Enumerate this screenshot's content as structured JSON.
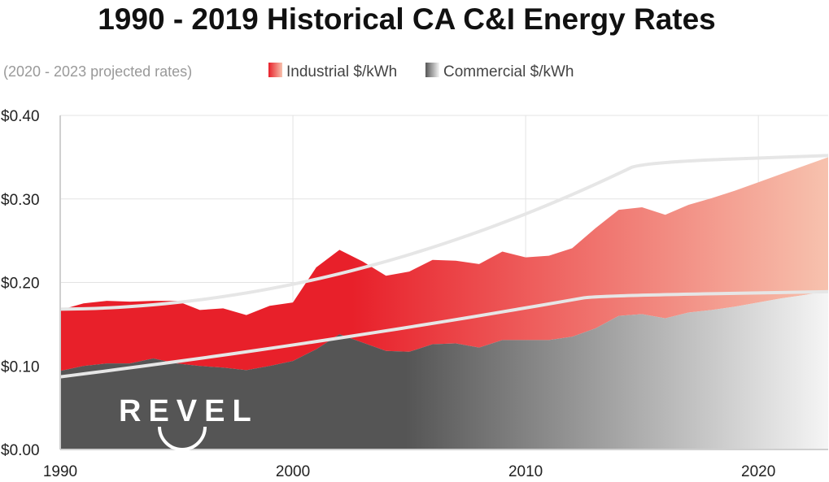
{
  "chart_data": {
    "type": "area",
    "title": "1990 - 2019 Historical CA C&I Energy Rates",
    "subtitle": "(2020 - 2023 projected rates)",
    "xlim": [
      1990,
      2023
    ],
    "ylim": [
      0,
      0.4
    ],
    "x_ticks": [
      1990,
      2000,
      2010,
      2020
    ],
    "y_ticks": [
      0,
      0.1,
      0.2,
      0.3,
      0.4
    ],
    "x_tick_labels": [
      "1990",
      "2000",
      "2010",
      "2020"
    ],
    "y_tick_labels": [
      "$0.00",
      "$0.10",
      "$0.20",
      "$0.30",
      "$0.40"
    ],
    "grid": true,
    "legend_position": "top",
    "x": [
      1990,
      1991,
      1992,
      1993,
      1994,
      1995,
      1996,
      1997,
      1998,
      1999,
      2000,
      2001,
      2002,
      2003,
      2004,
      2005,
      2006,
      2007,
      2008,
      2009,
      2010,
      2011,
      2012,
      2013,
      2014,
      2015,
      2016,
      2017,
      2018,
      2019,
      2020,
      2021,
      2022,
      2023
    ],
    "series": [
      {
        "name": "Industrial $/kWh",
        "color": "#e8202a",
        "values": [
          0.167,
          0.175,
          0.178,
          0.177,
          0.178,
          0.178,
          0.167,
          0.169,
          0.161,
          0.172,
          0.176,
          0.218,
          0.239,
          0.225,
          0.208,
          0.213,
          0.227,
          0.226,
          0.222,
          0.237,
          0.23,
          0.232,
          0.241,
          0.265,
          0.287,
          0.29,
          0.281,
          0.293,
          0.301,
          0.31,
          0.32,
          0.33,
          0.34,
          0.35
        ]
      },
      {
        "name": "Commercial $/kWh",
        "color": "#555555",
        "values": [
          0.094,
          0.1,
          0.103,
          0.103,
          0.109,
          0.103,
          0.1,
          0.098,
          0.095,
          0.1,
          0.106,
          0.12,
          0.138,
          0.128,
          0.118,
          0.117,
          0.126,
          0.127,
          0.122,
          0.131,
          0.131,
          0.131,
          0.135,
          0.145,
          0.16,
          0.162,
          0.157,
          0.164,
          0.167,
          0.171,
          0.176,
          0.181,
          0.185,
          0.19
        ]
      }
    ],
    "trendlines": {
      "industrial": [
        0.168,
        0.1684,
        0.1694,
        0.171,
        0.1732,
        0.1759,
        0.1792,
        0.183,
        0.1874,
        0.1923,
        0.1978,
        0.2038,
        0.2104,
        0.2175,
        0.2251,
        0.2333,
        0.242,
        0.2512,
        0.2609,
        0.2712,
        0.282,
        0.2933,
        0.3052,
        0.3176,
        0.3305,
        0.3439,
        0.352
      ],
      "commercial": [
        0.087,
        0.0905,
        0.0941,
        0.0978,
        0.1015,
        0.1053,
        0.1091,
        0.113,
        0.117,
        0.121,
        0.1251,
        0.1293,
        0.1335,
        0.1378,
        0.1421,
        0.1465,
        0.151,
        0.1555,
        0.1601,
        0.1648,
        0.1695,
        0.1743,
        0.1791,
        0.184,
        0.189
      ],
      "industrial_x": [
        1990,
        1991,
        1992,
        1993,
        1994,
        1995,
        1996,
        1997,
        1998,
        1999,
        2000,
        2001,
        2002,
        2003,
        2004,
        2005,
        2006,
        2007,
        2008,
        2009,
        2010,
        2011,
        2012,
        2013,
        2014,
        2015,
        2023
      ],
      "commercial_x": [
        1990,
        1991,
        1992,
        1993,
        1994,
        1995,
        1996,
        1997,
        1998,
        1999,
        2000,
        2001,
        2002,
        2003,
        2004,
        2005,
        2006,
        2007,
        2008,
        2009,
        2010,
        2011,
        2012,
        2013,
        2023
      ]
    },
    "logo_text": "REVEL"
  },
  "colors": {
    "industrial_start": "#e8202a",
    "industrial_end": "#f7c2ae",
    "commercial_start": "#555555",
    "commercial_end": "#f5f5f5",
    "trend": "#e6e6e6",
    "grid": "#e3e3e3",
    "axis": "#cfcfcf"
  }
}
